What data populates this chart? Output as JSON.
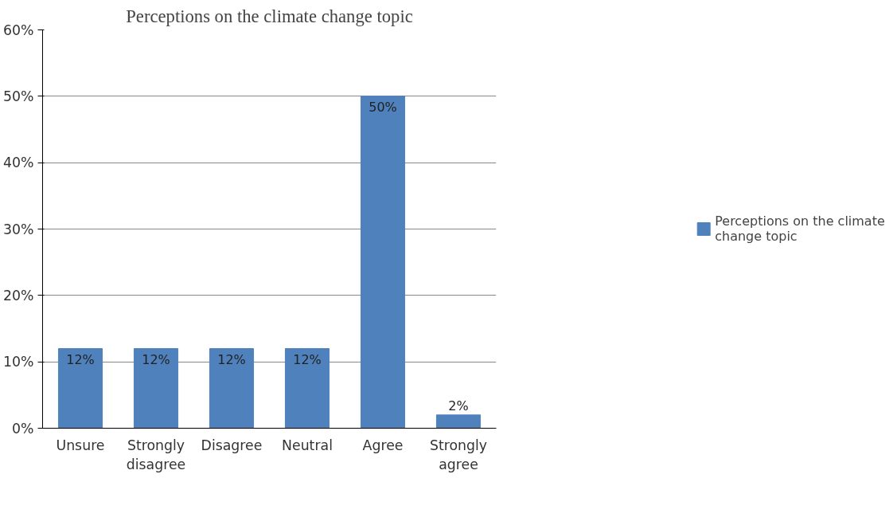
{
  "chart_data": {
    "type": "bar",
    "title": "Perceptions on the climate change topic",
    "categories": [
      "Unsure",
      "Strongly disagree",
      "Disagree",
      "Neutral",
      "Agree",
      "Strongly agree"
    ],
    "series": [
      {
        "name": "Perceptions on the climate change topic",
        "color": "#4f81bd",
        "values": [
          12,
          12,
          12,
          12,
          50,
          2
        ],
        "value_labels": [
          "12%",
          "12%",
          "12%",
          "12%",
          "50%",
          "2%"
        ]
      }
    ],
    "ylim": [
      0,
      60
    ],
    "yticks": [
      {
        "value": 0,
        "label": "0%"
      },
      {
        "value": 10,
        "label": "10%"
      },
      {
        "value": 20,
        "label": "20%"
      },
      {
        "value": 30,
        "label": "30%"
      },
      {
        "value": 40,
        "label": "40%"
      },
      {
        "value": 50,
        "label": "50%"
      },
      {
        "value": 60,
        "label": "60%"
      }
    ],
    "grid": "y",
    "legend": "right"
  }
}
